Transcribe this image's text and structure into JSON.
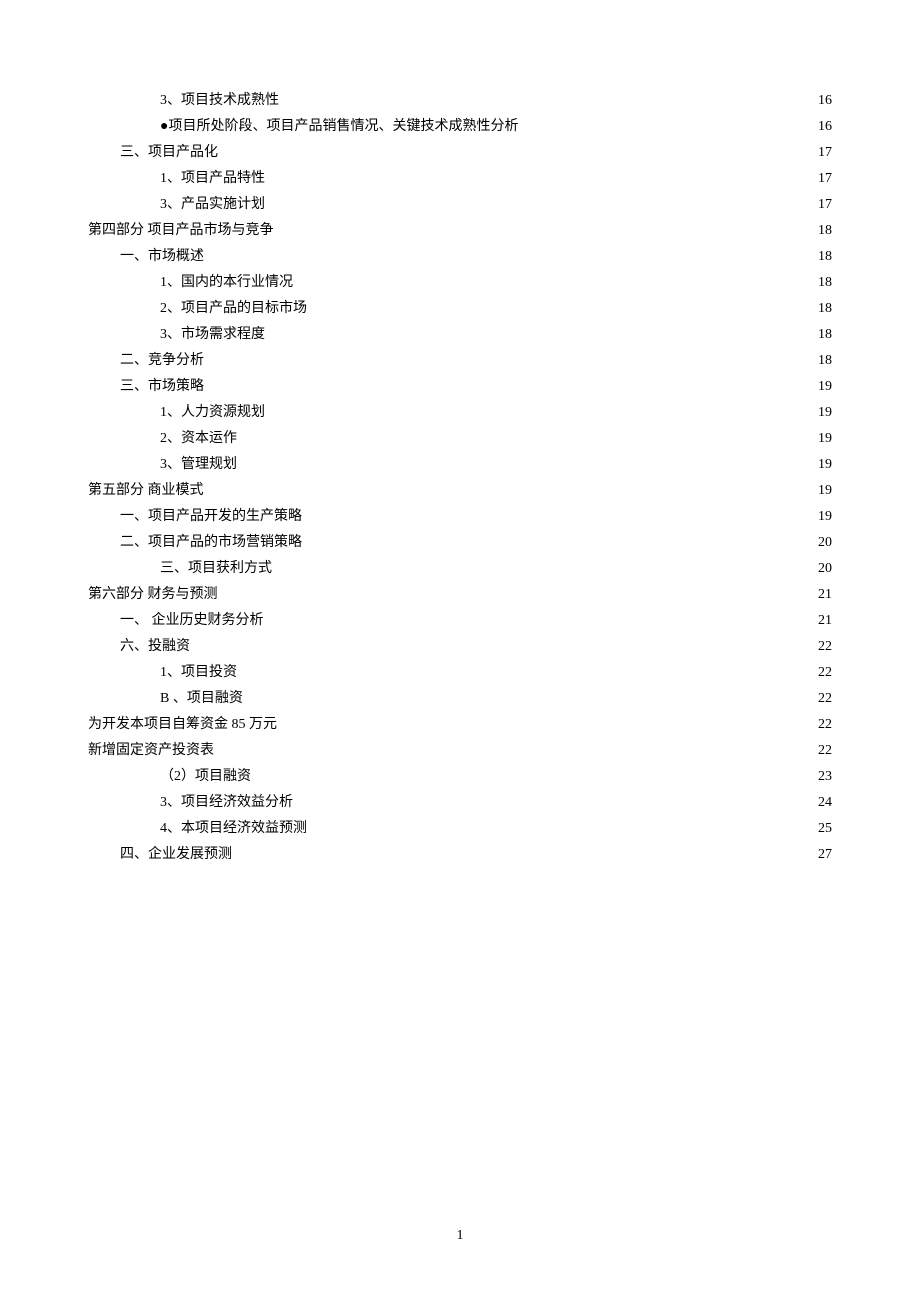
{
  "toc": {
    "entries": [
      {
        "label": "3、项目技术成熟性",
        "page": "16",
        "indent": 2
      },
      {
        "label": "●项目所处阶段、项目产品销售情况、关键技术成熟性分析",
        "page": "16",
        "indent": 2
      },
      {
        "label": "三、项目产品化",
        "page": "17",
        "indent": 1
      },
      {
        "label": "1、项目产品特性",
        "page": "17",
        "indent": 2
      },
      {
        "label": "3、产品实施计划",
        "page": "17",
        "indent": 2
      },
      {
        "label": "第四部分 项目产品市场与竞争",
        "page": "18",
        "indent": 0
      },
      {
        "label": "一、市场概述",
        "page": "18",
        "indent": 1
      },
      {
        "label": "1、国内的本行业情况",
        "page": "18",
        "indent": 2
      },
      {
        "label": "2、项目产品的目标市场",
        "page": "18",
        "indent": 2
      },
      {
        "label": "3、市场需求程度",
        "page": "18",
        "indent": 2
      },
      {
        "label": "二、竞争分析",
        "page": "18",
        "indent": 1
      },
      {
        "label": "三、市场策略",
        "page": "19",
        "indent": 1
      },
      {
        "label": "1、人力资源规划",
        "page": "19",
        "indent": 2
      },
      {
        "label": "2、资本运作",
        "page": "19",
        "indent": 2
      },
      {
        "label": "3、管理规划",
        "page": "19",
        "indent": 2
      },
      {
        "label": "第五部分  商业模式",
        "page": "19",
        "indent": 0
      },
      {
        "label": "一、项目产品开发的生产策略",
        "page": "19",
        "indent": 1
      },
      {
        "label": "二、项目产品的市场营销策略",
        "page": "20",
        "indent": 1
      },
      {
        "label": "三、项目获利方式",
        "page": "20",
        "indent": 2
      },
      {
        "label": "第六部分  财务与预测",
        "page": "21",
        "indent": 0
      },
      {
        "label": "一、  企业历史财务分析",
        "page": "21",
        "indent": 1
      },
      {
        "label": "六、投融资",
        "page": "22",
        "indent": 1
      },
      {
        "label": "1、项目投资",
        "page": "22",
        "indent": 2
      },
      {
        "label": "B 、项目融资",
        "page": "22",
        "indent": 2
      },
      {
        "label": "为开发本项目自筹资金 85 万元",
        "page": "22",
        "indent": 0
      },
      {
        "label": "新增固定资产投资表",
        "page": "22",
        "indent": 0
      },
      {
        "label": "（2）项目融资",
        "page": "23",
        "indent": 2
      },
      {
        "label": "3、项目经济效益分析",
        "page": "24",
        "indent": 2
      },
      {
        "label": "4、本项目经济效益预测",
        "page": "25",
        "indent": 2
      },
      {
        "label": "四、企业发展预测",
        "page": "27",
        "indent": 1
      }
    ]
  },
  "footer": {
    "page_number": "1"
  }
}
